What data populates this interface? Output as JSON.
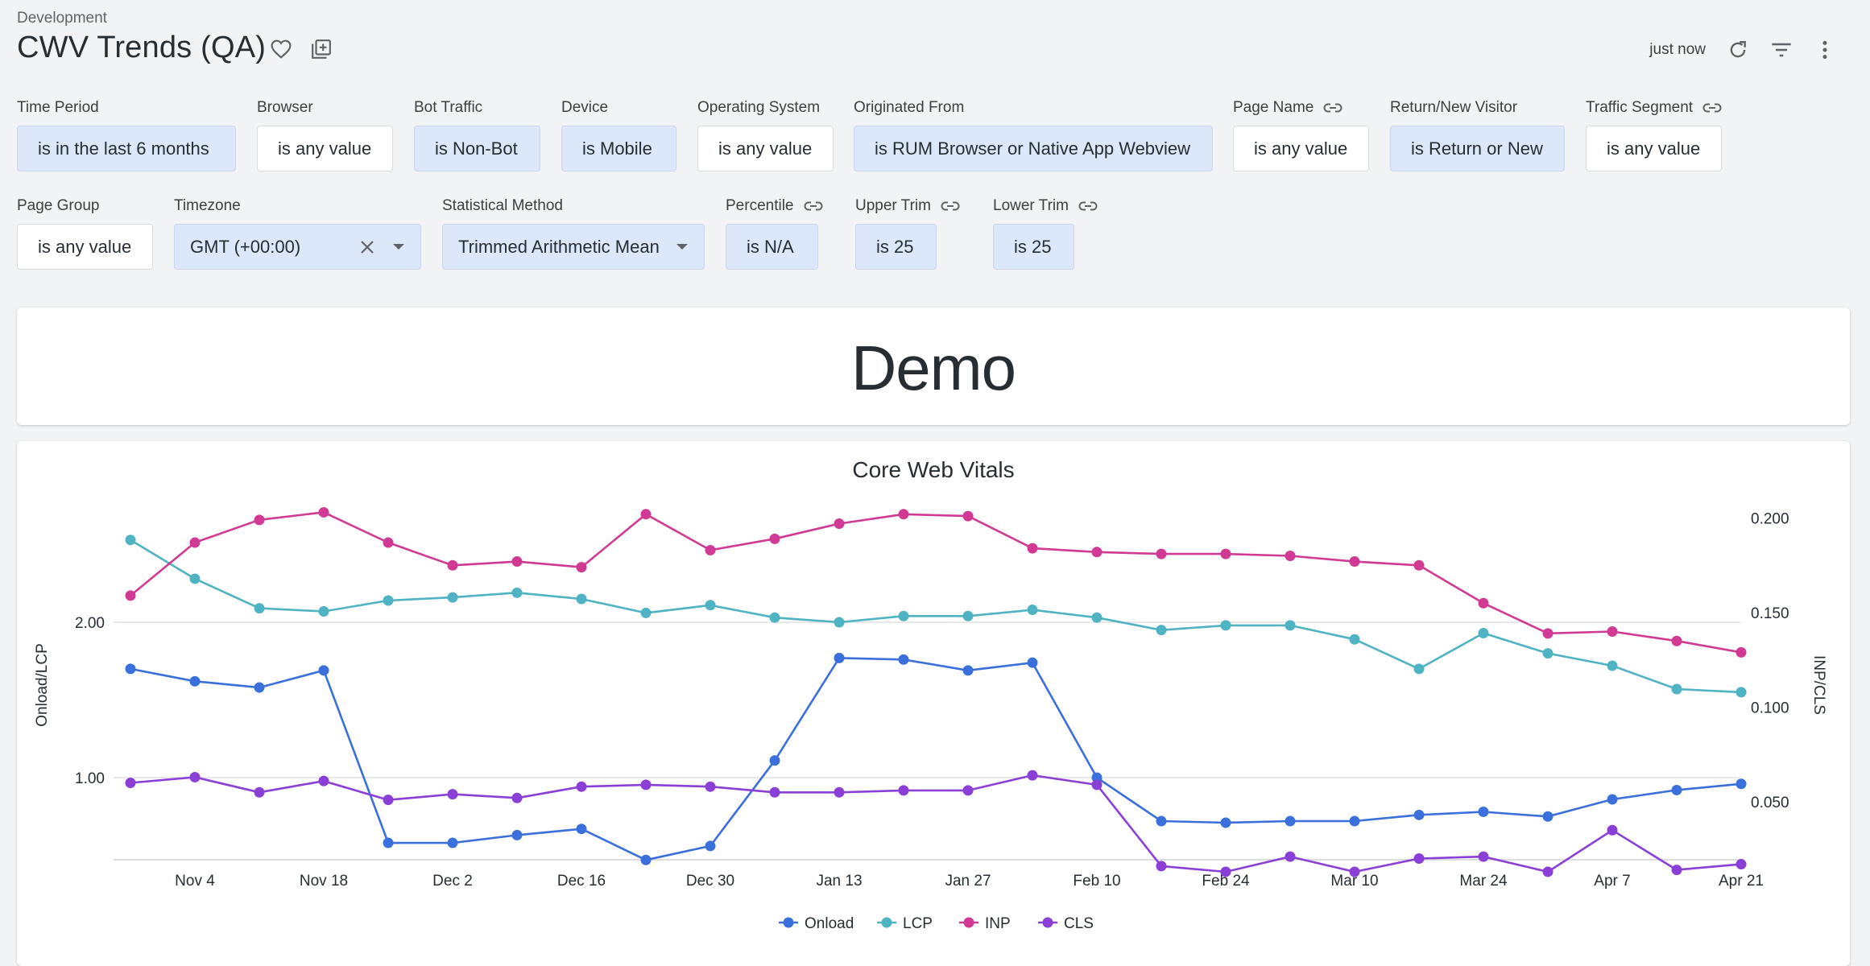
{
  "header": {
    "breadcrumb": "Development",
    "title": "CWV Trends (QA)",
    "last_updated": "just now",
    "icons": [
      "heart-icon",
      "add-to-board-icon",
      "refresh-icon",
      "filter-icon",
      "more-vert-icon"
    ]
  },
  "filters": [
    {
      "label": "Time Period",
      "value": "is in the last 6 months",
      "active": true,
      "link": false
    },
    {
      "label": "Browser",
      "value": "is any value",
      "active": false,
      "link": false
    },
    {
      "label": "Bot Traffic",
      "value": "is Non-Bot",
      "active": true,
      "link": false
    },
    {
      "label": "Device",
      "value": "is Mobile",
      "active": true,
      "link": false
    },
    {
      "label": "Operating System",
      "value": "is any value",
      "active": false,
      "link": false
    },
    {
      "label": "Originated From",
      "value": "is RUM Browser or Native App Webview",
      "active": true,
      "link": false
    },
    {
      "label": "Page Name",
      "value": "is any value",
      "active": false,
      "link": true
    },
    {
      "label": "Return/New Visitor",
      "value": "is Return or New",
      "active": true,
      "link": false
    },
    {
      "label": "Traffic Segment",
      "value": "is any value",
      "active": false,
      "link": true
    },
    {
      "label": "Page Group",
      "value": "is any value",
      "active": false,
      "link": false
    },
    {
      "label": "Timezone",
      "value": "GMT (+00:00)",
      "active": true,
      "link": false
    },
    {
      "label": "Statistical Method",
      "value": "Trimmed Arithmetic Mean",
      "active": true,
      "link": false
    },
    {
      "label": "Percentile",
      "value": "is N/A",
      "active": true,
      "link": true
    },
    {
      "label": "Upper Trim",
      "value": "is 25",
      "active": true,
      "link": true
    },
    {
      "label": "Lower Trim",
      "value": "is 25",
      "active": true,
      "link": true
    }
  ],
  "demo_tile": {
    "text": "Demo"
  },
  "colors": {
    "onload": "#3a6fdc",
    "lcp": "#4fb3c3",
    "inp": "#d13a93",
    "cls": "#8a3fd6",
    "chip_active": "#dce7f9",
    "grid": "#e0e0e0"
  },
  "chart_data": {
    "type": "line",
    "title": "Core Web Vitals",
    "x_ticks": [
      "Nov 4",
      "Nov 18",
      "Dec 2",
      "Dec 16",
      "Dec 30",
      "Jan 13",
      "Jan 27",
      "Feb 10",
      "Feb 24",
      "Mar 10",
      "Mar 24",
      "Apr 7",
      "Apr 21"
    ],
    "x": [
      "Oct 28",
      "Nov 4",
      "Nov 11",
      "Nov 18",
      "Nov 25",
      "Dec 2",
      "Dec 9",
      "Dec 16",
      "Dec 23",
      "Dec 30",
      "Jan 6",
      "Jan 13",
      "Jan 20",
      "Jan 27",
      "Feb 3",
      "Feb 10",
      "Feb 17",
      "Feb 24",
      "Mar 3",
      "Mar 10",
      "Mar 17",
      "Mar 24",
      "Mar 31",
      "Apr 7",
      "Apr 14",
      "Apr 21"
    ],
    "y_left": {
      "label": "Onload/LCP",
      "ticks": [
        "1.00",
        "2.00"
      ],
      "range": [
        0.47,
        2.55
      ]
    },
    "y_right": {
      "label": "INP/CLS",
      "ticks": [
        "0.050",
        "0.100",
        "0.150",
        "0.200"
      ],
      "range": [
        0.013,
        0.2055
      ]
    },
    "series": [
      {
        "name": "Onload",
        "axis": "left",
        "values": [
          1.7,
          1.62,
          1.58,
          1.69,
          0.58,
          0.58,
          0.63,
          0.67,
          0.47,
          0.56,
          1.11,
          1.77,
          1.76,
          1.69,
          1.74,
          1.0,
          0.72,
          0.71,
          0.72,
          0.72,
          0.76,
          0.78,
          0.75,
          0.86,
          0.92,
          0.96
        ]
      },
      {
        "name": "LCP",
        "axis": "left",
        "values": [
          2.53,
          2.28,
          2.09,
          2.07,
          2.14,
          2.16,
          2.19,
          2.15,
          2.06,
          2.11,
          2.03,
          2.0,
          2.04,
          2.04,
          2.08,
          2.03,
          1.95,
          1.98,
          1.98,
          1.89,
          1.7,
          1.93,
          1.8,
          1.72,
          1.57,
          1.55
        ]
      },
      {
        "name": "INP",
        "axis": "right",
        "values": [
          0.159,
          0.187,
          0.199,
          0.203,
          0.187,
          0.175,
          0.177,
          0.174,
          0.202,
          0.183,
          0.189,
          0.197,
          0.202,
          0.201,
          0.184,
          0.182,
          0.181,
          0.181,
          0.18,
          0.177,
          0.175,
          0.155,
          0.139,
          0.14,
          0.135,
          0.129
        ]
      },
      {
        "name": "CLS",
        "axis": "right",
        "values": [
          0.06,
          0.063,
          0.055,
          0.061,
          0.051,
          0.054,
          0.052,
          0.058,
          0.059,
          0.058,
          0.055,
          0.055,
          0.056,
          0.056,
          0.064,
          0.059,
          0.016,
          0.013,
          0.021,
          0.013,
          0.02,
          0.021,
          0.013,
          0.035,
          0.014,
          0.017
        ]
      }
    ],
    "legend": {
      "position": "bottom",
      "items": [
        "Onload",
        "LCP",
        "INP",
        "CLS"
      ]
    },
    "grid": true
  }
}
